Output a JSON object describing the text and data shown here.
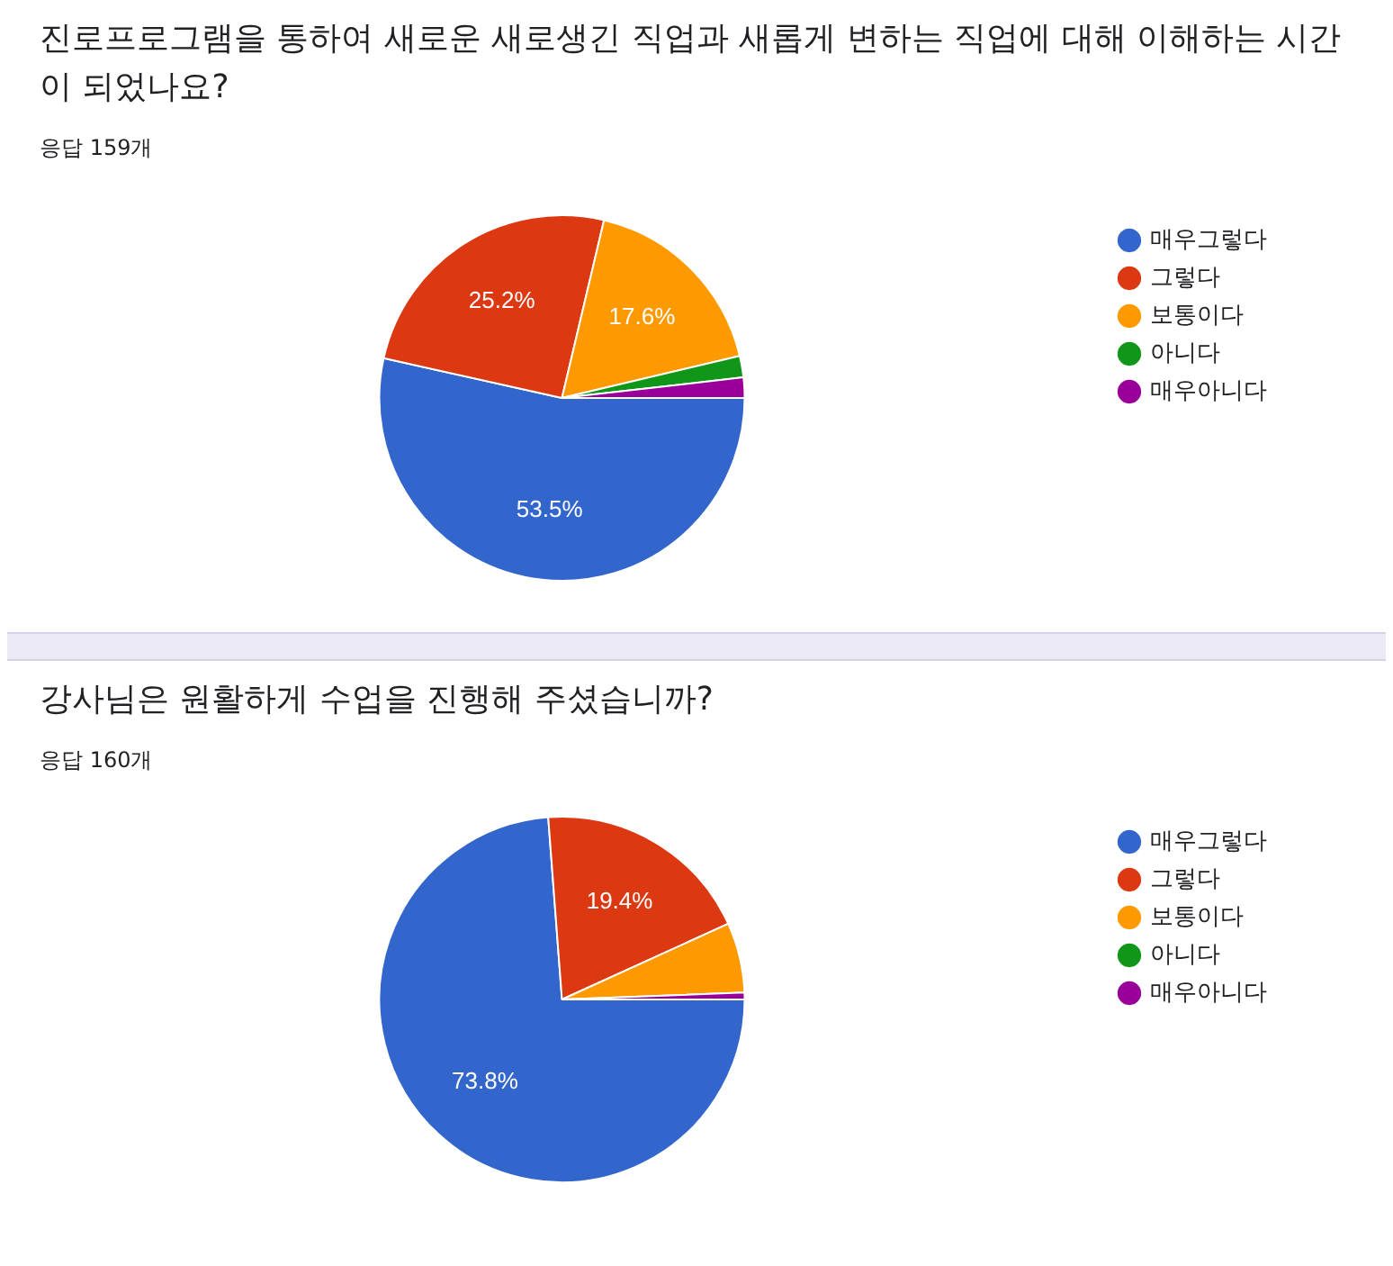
{
  "chart_data": [
    {
      "type": "pie",
      "title": "진로프로그램을 통하여 새로운 새로생긴 직업과 새롭게 변하는 직업에 대해 이해하는 시간이 되었나요?",
      "subtitle": "응답 159개",
      "categories": [
        "매우그렇다",
        "그렇다",
        "보통이다",
        "아니다",
        "매우아니다"
      ],
      "values": [
        53.5,
        25.2,
        17.6,
        1.9,
        1.8
      ],
      "colors": [
        "#3366cc",
        "#dc3912",
        "#ff9900",
        "#109618",
        "#990099"
      ],
      "value_labels": [
        "53.5%",
        "25.2%",
        "17.6%",
        null,
        null
      ],
      "legend": "right"
    },
    {
      "type": "pie",
      "title": "강사님은 원활하게 수업을 진행해 주셨습니까?",
      "subtitle": "응답 160개",
      "categories": [
        "매우그렇다",
        "그렇다",
        "보통이다",
        "아니다",
        "매우아니다"
      ],
      "values": [
        73.8,
        19.4,
        6.2,
        0,
        0.6
      ],
      "colors": [
        "#3366cc",
        "#dc3912",
        "#ff9900",
        "#109618",
        "#990099"
      ],
      "value_labels": [
        "73.8%",
        "19.4%",
        null,
        null,
        null
      ],
      "legend": "right"
    }
  ]
}
